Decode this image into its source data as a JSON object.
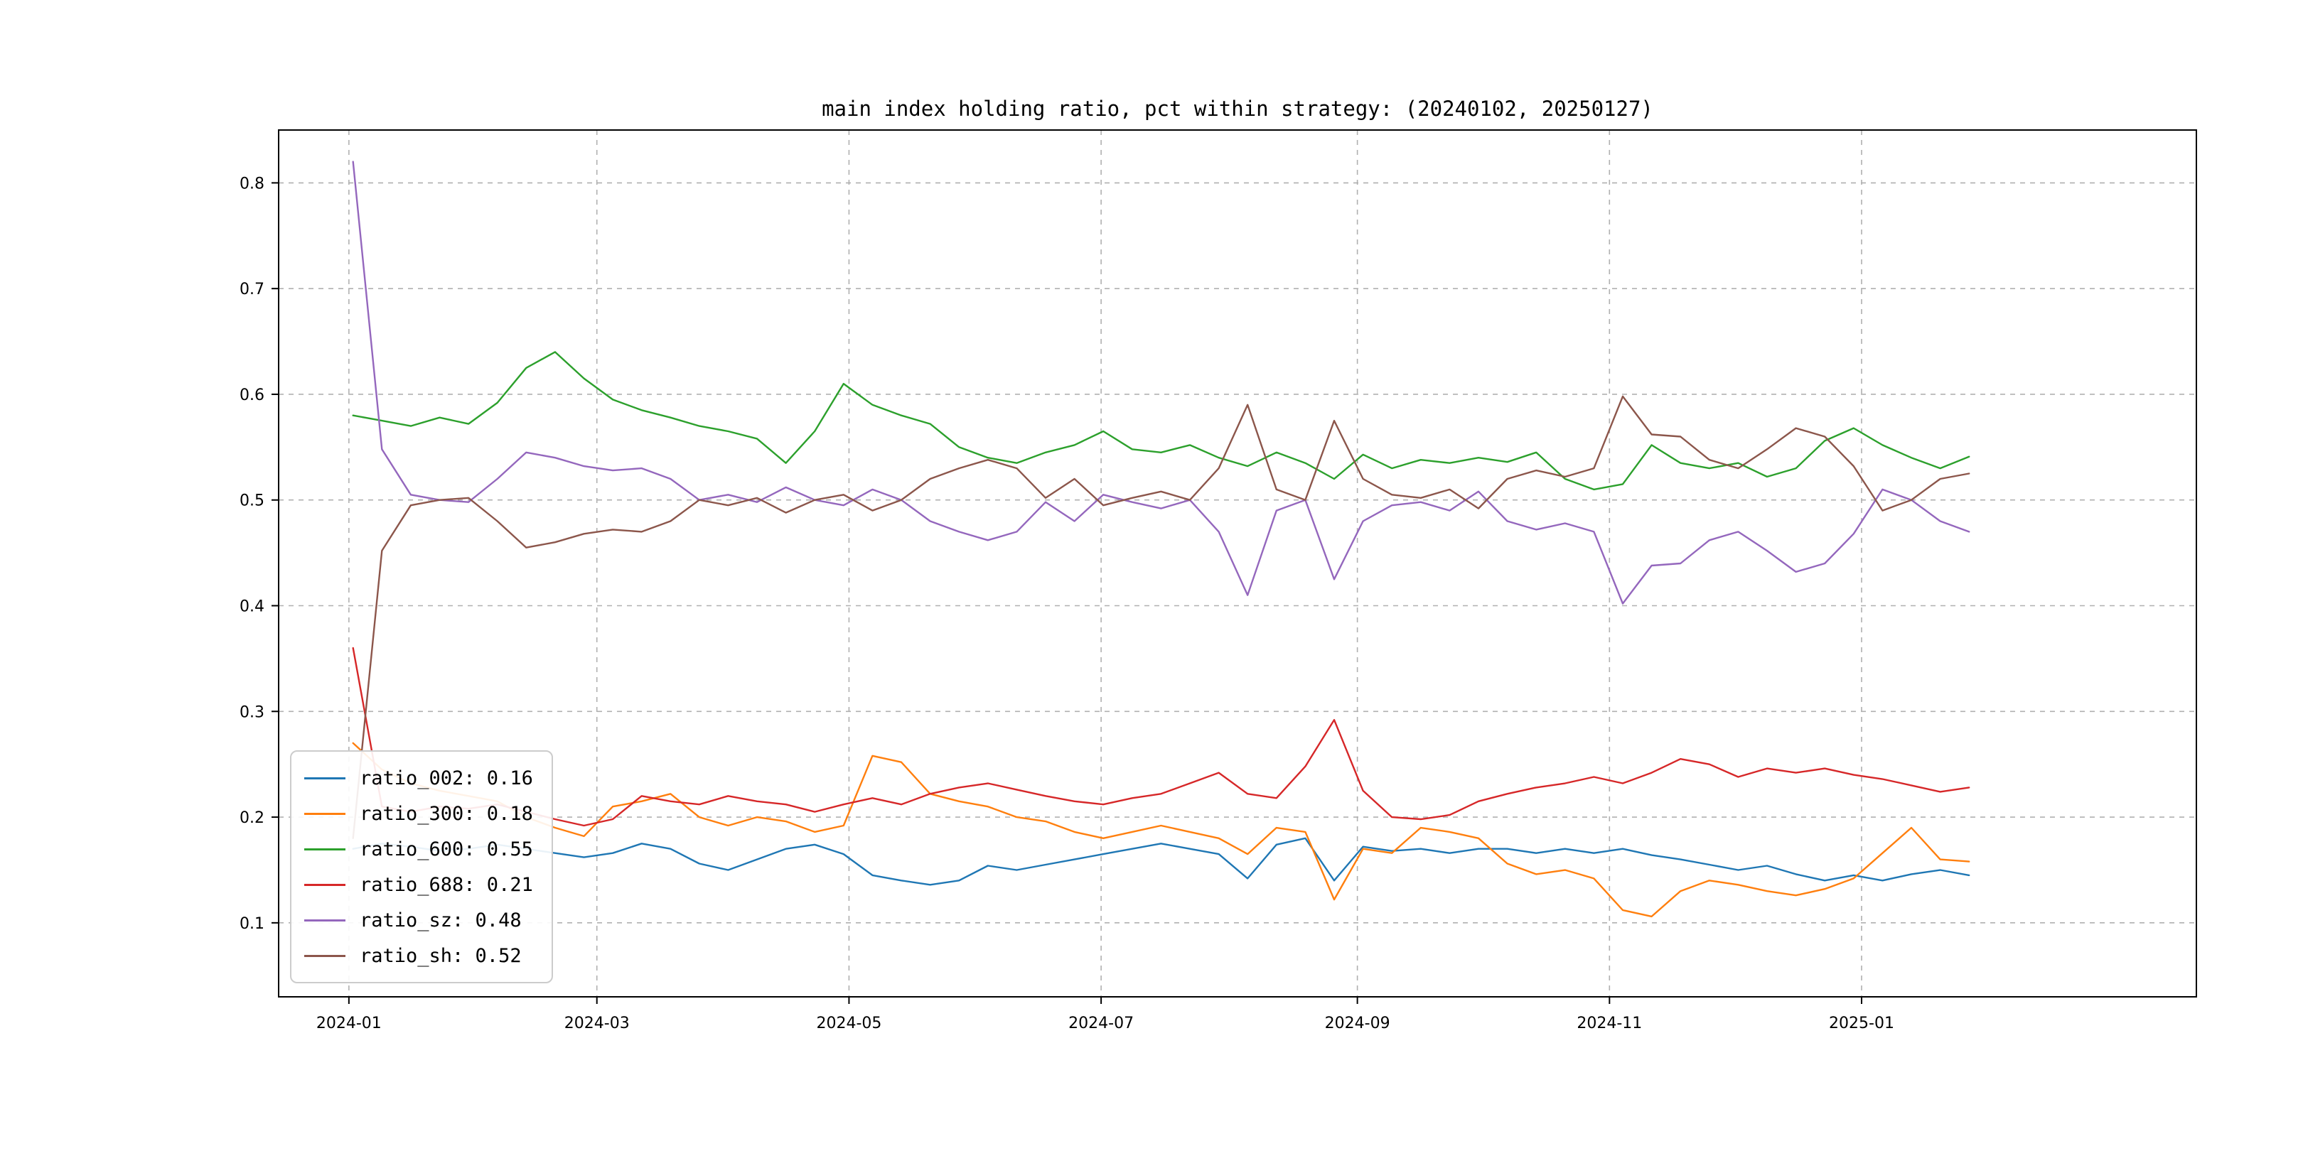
{
  "chart_data": {
    "type": "line",
    "title": "main index holding ratio, pct within strategy: (20240102, 20250127)",
    "xlabel": "",
    "ylabel": "",
    "grid": {
      "show": true,
      "style": "dashed",
      "color": "#b0b0b0"
    },
    "x_axis": {
      "unit": "days since 2024-01-01",
      "lim": [
        -17,
        447
      ],
      "data_start_day": 1,
      "data_end_day": 392,
      "ticks": [
        {
          "label": "2024-01",
          "day": 0
        },
        {
          "label": "2024-03",
          "day": 60
        },
        {
          "label": "2024-05",
          "day": 121
        },
        {
          "label": "2024-07",
          "day": 182
        },
        {
          "label": "2024-09",
          "day": 244
        },
        {
          "label": "2024-11",
          "day": 305
        },
        {
          "label": "2025-01",
          "day": 366
        }
      ]
    },
    "y_axis": {
      "lim": [
        0.03,
        0.85
      ],
      "ticks": [
        0.1,
        0.2,
        0.3,
        0.4,
        0.5,
        0.6,
        0.7,
        0.8
      ]
    },
    "legend": {
      "position": "lower-left"
    },
    "series": [
      {
        "name": "ratio_002",
        "legend_label": "ratio_002: 0.16",
        "color": "#1f77b4",
        "values": [
          0.17,
          0.175,
          0.172,
          0.168,
          0.17,
          0.174,
          0.17,
          0.166,
          0.162,
          0.166,
          0.175,
          0.17,
          0.156,
          0.15,
          0.16,
          0.17,
          0.174,
          0.165,
          0.145,
          0.14,
          0.136,
          0.14,
          0.154,
          0.15,
          0.155,
          0.16,
          0.165,
          0.17,
          0.175,
          0.17,
          0.165,
          0.142,
          0.174,
          0.18,
          0.14,
          0.172,
          0.168,
          0.17,
          0.166,
          0.17,
          0.17,
          0.166,
          0.17,
          0.166,
          0.17,
          0.164,
          0.16,
          0.155,
          0.15,
          0.154,
          0.146,
          0.14,
          0.145,
          0.14,
          0.146,
          0.15,
          0.145
        ]
      },
      {
        "name": "ratio_300",
        "legend_label": "ratio_300: 0.18",
        "color": "#ff7f0e",
        "values": [
          0.27,
          0.245,
          0.232,
          0.225,
          0.22,
          0.215,
          0.2,
          0.19,
          0.182,
          0.21,
          0.215,
          0.222,
          0.2,
          0.192,
          0.2,
          0.196,
          0.186,
          0.192,
          0.258,
          0.252,
          0.222,
          0.215,
          0.21,
          0.2,
          0.196,
          0.186,
          0.18,
          0.186,
          0.192,
          0.186,
          0.18,
          0.165,
          0.19,
          0.186,
          0.122,
          0.17,
          0.166,
          0.19,
          0.186,
          0.18,
          0.156,
          0.146,
          0.15,
          0.142,
          0.112,
          0.106,
          0.13,
          0.14,
          0.136,
          0.13,
          0.126,
          0.132,
          0.142,
          0.166,
          0.19,
          0.16,
          0.158
        ]
      },
      {
        "name": "ratio_600",
        "legend_label": "ratio_600: 0.55",
        "color": "#2ca02c",
        "values": [
          0.58,
          0.575,
          0.57,
          0.578,
          0.572,
          0.592,
          0.625,
          0.64,
          0.615,
          0.595,
          0.585,
          0.578,
          0.57,
          0.565,
          0.558,
          0.535,
          0.565,
          0.61,
          0.59,
          0.58,
          0.572,
          0.55,
          0.54,
          0.535,
          0.545,
          0.552,
          0.565,
          0.548,
          0.545,
          0.552,
          0.54,
          0.532,
          0.545,
          0.535,
          0.52,
          0.543,
          0.53,
          0.538,
          0.535,
          0.54,
          0.536,
          0.545,
          0.52,
          0.51,
          0.515,
          0.552,
          0.535,
          0.53,
          0.535,
          0.522,
          0.53,
          0.556,
          0.568,
          0.552,
          0.54,
          0.53,
          0.541
        ]
      },
      {
        "name": "ratio_688",
        "legend_label": "ratio_688: 0.21",
        "color": "#d62728",
        "values": [
          0.36,
          0.21,
          0.205,
          0.21,
          0.208,
          0.212,
          0.205,
          0.198,
          0.192,
          0.198,
          0.22,
          0.215,
          0.212,
          0.22,
          0.215,
          0.212,
          0.205,
          0.212,
          0.218,
          0.212,
          0.222,
          0.228,
          0.232,
          0.226,
          0.22,
          0.215,
          0.212,
          0.218,
          0.222,
          0.232,
          0.242,
          0.222,
          0.218,
          0.248,
          0.292,
          0.225,
          0.2,
          0.198,
          0.202,
          0.215,
          0.222,
          0.228,
          0.232,
          0.238,
          0.232,
          0.242,
          0.255,
          0.25,
          0.238,
          0.246,
          0.242,
          0.246,
          0.24,
          0.236,
          0.23,
          0.224,
          0.228
        ]
      },
      {
        "name": "ratio_sz",
        "legend_label": "ratio_sz: 0.48",
        "color": "#9467bd",
        "values": [
          0.82,
          0.548,
          0.505,
          0.5,
          0.498,
          0.52,
          0.545,
          0.54,
          0.532,
          0.528,
          0.53,
          0.52,
          0.5,
          0.505,
          0.498,
          0.512,
          0.5,
          0.495,
          0.51,
          0.5,
          0.48,
          0.47,
          0.462,
          0.47,
          0.498,
          0.48,
          0.505,
          0.498,
          0.492,
          0.5,
          0.47,
          0.41,
          0.49,
          0.5,
          0.425,
          0.48,
          0.495,
          0.498,
          0.49,
          0.508,
          0.48,
          0.472,
          0.478,
          0.47,
          0.402,
          0.438,
          0.44,
          0.462,
          0.47,
          0.452,
          0.432,
          0.44,
          0.468,
          0.51,
          0.5,
          0.48,
          0.47
        ]
      },
      {
        "name": "ratio_sh",
        "legend_label": "ratio_sh: 0.52",
        "color": "#8c564b",
        "values": [
          0.18,
          0.452,
          0.495,
          0.5,
          0.502,
          0.48,
          0.455,
          0.46,
          0.468,
          0.472,
          0.47,
          0.48,
          0.5,
          0.495,
          0.502,
          0.488,
          0.5,
          0.505,
          0.49,
          0.5,
          0.52,
          0.53,
          0.538,
          0.53,
          0.502,
          0.52,
          0.495,
          0.502,
          0.508,
          0.5,
          0.53,
          0.59,
          0.51,
          0.5,
          0.575,
          0.52,
          0.505,
          0.502,
          0.51,
          0.492,
          0.52,
          0.528,
          0.522,
          0.53,
          0.598,
          0.562,
          0.56,
          0.538,
          0.53,
          0.548,
          0.568,
          0.56,
          0.532,
          0.49,
          0.5,
          0.52,
          0.525
        ]
      }
    ]
  }
}
